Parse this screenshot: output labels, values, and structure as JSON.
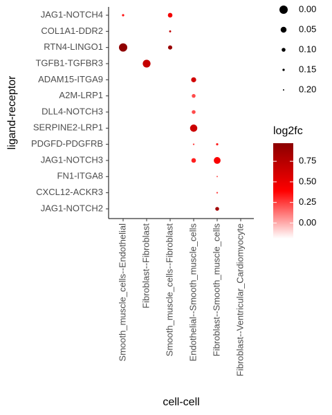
{
  "chart_data": {
    "type": "dotplot",
    "x_label": "cell-cell",
    "y_label": "ligand-receptor",
    "x_categories": [
      "Smooth_muscle_cells--Endothelial",
      "Fibroblast--Fibroblast",
      "Smooth_muscle_cells--Fibroblast",
      "Endothelial--Smooth_muscle_cells",
      "Fibroblast--Smooth_muscle_cells",
      "Fibroblast--Ventricular_Cardiomyocyte"
    ],
    "y_categories": [
      "JAG1-NOTCH4",
      "COL1A1-DDR2",
      "RTN4-LINGO1",
      "TGFB1-TGFBR3",
      "ADAM15-ITGA9",
      "A2M-LRP1",
      "DLL4-NOTCH3",
      "SERPINE2-LRP1",
      "PDGFD-PDGFRB",
      "JAG1-NOTCH3",
      "FN1-ITGA8",
      "CXCL12-ACKR3",
      "JAG1-NOTCH2"
    ],
    "points": [
      {
        "x": "Smooth_muscle_cells--Endothelial",
        "y": "JAG1-NOTCH4",
        "size": 0.15,
        "log2fc": 0.35
      },
      {
        "x": "Smooth_muscle_cells--Fibroblast",
        "y": "JAG1-NOTCH4",
        "size": 0.08,
        "log2fc": 0.45
      },
      {
        "x": "Smooth_muscle_cells--Fibroblast",
        "y": "COL1A1-DDR2",
        "size": 0.16,
        "log2fc": 0.7
      },
      {
        "x": "Smooth_muscle_cells--Endothelial",
        "y": "RTN4-LINGO1",
        "size": 0.0,
        "log2fc": 0.95
      },
      {
        "x": "Smooth_muscle_cells--Fibroblast",
        "y": "RTN4-LINGO1",
        "size": 0.09,
        "log2fc": 0.9
      },
      {
        "x": "Fibroblast--Fibroblast",
        "y": "TGFB1-TGFBR3",
        "size": 0.01,
        "log2fc": 0.68
      },
      {
        "x": "Endothelial--Smooth_muscle_cells",
        "y": "ADAM15-ITGA9",
        "size": 0.07,
        "log2fc": 0.62
      },
      {
        "x": "Endothelial--Smooth_muscle_cells",
        "y": "A2M-LRP1",
        "size": 0.1,
        "log2fc": 0.22
      },
      {
        "x": "Endothelial--Smooth_muscle_cells",
        "y": "DLL4-NOTCH3",
        "size": 0.1,
        "log2fc": 0.22
      },
      {
        "x": "Endothelial--Smooth_muscle_cells",
        "y": "SERPINE2-LRP1",
        "size": 0.02,
        "log2fc": 0.65
      },
      {
        "x": "Endothelial--Smooth_muscle_cells",
        "y": "PDGFD-PDGFRB",
        "size": 0.18,
        "log2fc": 0.25
      },
      {
        "x": "Fibroblast--Smooth_muscle_cells",
        "y": "PDGFD-PDGFRB",
        "size": 0.15,
        "log2fc": 0.32
      },
      {
        "x": "Endothelial--Smooth_muscle_cells",
        "y": "JAG1-NOTCH3",
        "size": 0.08,
        "log2fc": 0.32
      },
      {
        "x": "Fibroblast--Smooth_muscle_cells",
        "y": "JAG1-NOTCH3",
        "size": 0.03,
        "log2fc": 0.42
      },
      {
        "x": "Fibroblast--Smooth_muscle_cells",
        "y": "FN1-ITGA8",
        "size": 0.2,
        "log2fc": 0.2
      },
      {
        "x": "Fibroblast--Smooth_muscle_cells",
        "y": "CXCL12-ACKR3",
        "size": 0.18,
        "log2fc": 0.25
      },
      {
        "x": "Fibroblast--Smooth_muscle_cells",
        "y": "JAG1-NOTCH2",
        "size": 0.1,
        "log2fc": 0.85
      }
    ],
    "size_ticks": [
      {
        "value": 0.0,
        "label": "0.00"
      },
      {
        "value": 0.05,
        "label": "0.05"
      },
      {
        "value": 0.1,
        "label": "0.10"
      },
      {
        "value": 0.15,
        "label": "0.15"
      },
      {
        "value": 0.2,
        "label": "0.20"
      }
    ],
    "size_lim": [
      0,
      0.2
    ],
    "color_title": "log2fc",
    "color_lim": [
      -0.19,
      0.97
    ],
    "color_ticks": [
      {
        "value": 0.0,
        "label": "0.00"
      },
      {
        "value": 0.25,
        "label": "0.25"
      },
      {
        "value": 0.5,
        "label": "0.50"
      },
      {
        "value": 0.75,
        "label": "0.75"
      }
    ],
    "colors": [
      "#ffffff",
      "#ff0000",
      "#8b0000"
    ]
  }
}
